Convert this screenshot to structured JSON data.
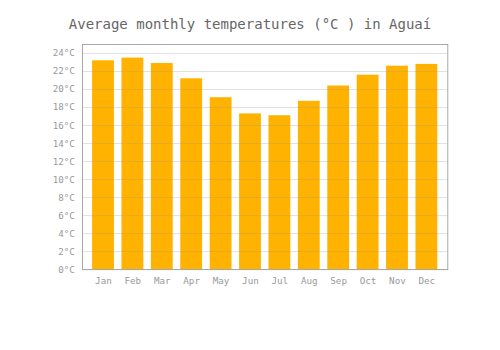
{
  "chart_data": {
    "type": "bar",
    "title": "Average monthly temperatures (°C ) in Aguaí",
    "categories": [
      "Jan",
      "Feb",
      "Mar",
      "Apr",
      "May",
      "Jun",
      "Jul",
      "Aug",
      "Sep",
      "Oct",
      "Nov",
      "Dec"
    ],
    "values": [
      23.2,
      23.5,
      22.9,
      21.2,
      19.1,
      17.3,
      17.1,
      18.7,
      20.4,
      21.6,
      22.6,
      22.8
    ],
    "color": "#FFB300",
    "ylim": [
      0,
      25
    ],
    "yticks": [
      {
        "value": 0,
        "label": "0°C"
      },
      {
        "value": 2,
        "label": "2°C"
      },
      {
        "value": 4,
        "label": "4°C"
      },
      {
        "value": 6,
        "label": "6°C"
      },
      {
        "value": 8,
        "label": "8°C"
      },
      {
        "value": 10,
        "label": "10°C"
      },
      {
        "value": 12,
        "label": "12°C"
      },
      {
        "value": 14,
        "label": "14°C"
      },
      {
        "value": 16,
        "label": "16°C"
      },
      {
        "value": 18,
        "label": "18°C"
      },
      {
        "value": 20,
        "label": "20°C"
      },
      {
        "value": 22,
        "label": "22°C"
      },
      {
        "value": 24,
        "label": "24°C"
      }
    ],
    "grid": true
  }
}
